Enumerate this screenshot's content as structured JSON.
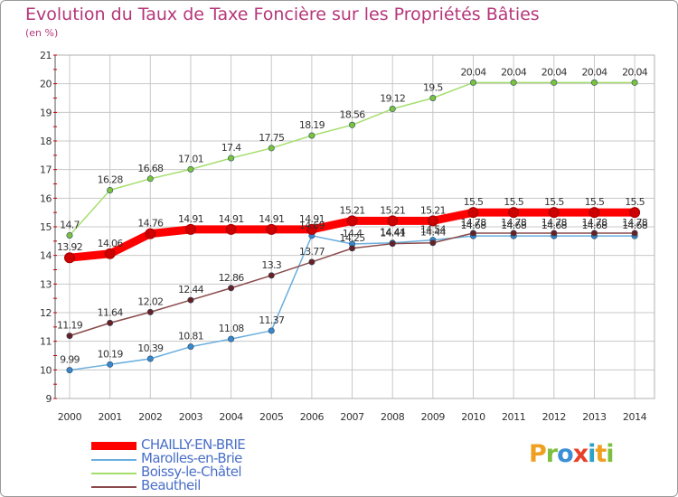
{
  "header": {
    "title": "Evolution du Taux de Taxe Foncière sur les Propriétés Bâties",
    "unit": "(en %)"
  },
  "colors": {
    "accent": "#b5367a",
    "grid": "#c8c8c8",
    "axis_text": "#333333"
  },
  "logo": {
    "letters": [
      {
        "char": "P",
        "color": "#f0a020"
      },
      {
        "char": "r",
        "color": "#7fbf3f"
      },
      {
        "char": "o",
        "color": "#3a8fd6"
      },
      {
        "char": "x",
        "color": "#e8402a"
      },
      {
        "char": "i",
        "color": "#2ba0c8"
      },
      {
        "char": "t",
        "color": "#f0a020"
      },
      {
        "char": "i",
        "color": "#7fbf3f"
      }
    ]
  },
  "chart_data": {
    "type": "line",
    "title": "Evolution du Taux de Taxe Foncière sur les Propriétés Bâties",
    "ylabel": "(en %)",
    "xlabel": "",
    "x": [
      "2000",
      "2001",
      "2002",
      "2003",
      "2004",
      "2005",
      "2006",
      "2007",
      "2008",
      "2009",
      "2010",
      "2011",
      "2012",
      "2013",
      "2014"
    ],
    "ylim": [
      9,
      21
    ],
    "yticks": [
      9,
      10,
      11,
      12,
      13,
      14,
      15,
      16,
      17,
      18,
      19,
      20,
      21
    ],
    "grid": true,
    "legend_position": "bottom-left",
    "series": [
      {
        "name": "CHAILLY-EN-BRIE",
        "color": "#ff0000",
        "marker": "#cc0000",
        "width": "thick",
        "values": [
          13.92,
          14.06,
          14.76,
          14.91,
          14.91,
          14.91,
          14.91,
          15.21,
          15.21,
          15.21,
          15.5,
          15.5,
          15.5,
          15.5,
          15.5
        ],
        "labels": [
          "13.92",
          "14.06",
          "14.76",
          "14.91",
          "14.91",
          "14.91",
          "14.91",
          "15.21",
          "15.21",
          "15.21",
          "15.5",
          "15.5",
          "15.5",
          "15.5",
          "15.5"
        ]
      },
      {
        "name": "Marolles-en-Brie",
        "color": "#6aaede",
        "marker": "#3a86c8",
        "width": "thin",
        "values": [
          9.99,
          10.19,
          10.39,
          10.81,
          11.08,
          11.37,
          14.69,
          14.4,
          14.44,
          14.54,
          14.68,
          14.68,
          14.68,
          14.68,
          14.68
        ],
        "labels": [
          "9.99",
          "10.19",
          "10.39",
          "10.81",
          "11.08",
          "11.37",
          "14.69",
          "14.4",
          "14.44",
          "14.54",
          "14.68",
          "14.68",
          "14.68",
          "14.68",
          "14.68"
        ]
      },
      {
        "name": "Boissy-le-Châtel",
        "color": "#a6de6e",
        "marker": "#7cc23c",
        "width": "thin",
        "values": [
          14.7,
          16.28,
          16.68,
          17.01,
          17.4,
          17.75,
          18.19,
          18.56,
          19.12,
          19.5,
          20.04,
          20.04,
          20.04,
          20.04,
          20.04
        ],
        "labels": [
          "14.7",
          "16.28",
          "16.68",
          "17.01",
          "17.4",
          "17.75",
          "18.19",
          "18.56",
          "19.12",
          "19.5",
          "20.04",
          "20.04",
          "20.04",
          "20.04",
          "20.04"
        ]
      },
      {
        "name": "Beautheil",
        "color": "#8a4a4a",
        "marker": "#6a2020",
        "width": "thin",
        "values": [
          11.19,
          11.64,
          12.02,
          12.44,
          12.86,
          13.3,
          13.77,
          14.25,
          14.41,
          14.44,
          14.78,
          14.78,
          14.78,
          14.78,
          14.78
        ],
        "labels": [
          "11.19",
          "11.64",
          "12.02",
          "12.44",
          "12.86",
          "13.3",
          "13.77",
          "14.25",
          "14.41",
          "14.44",
          "14.78",
          "14.78",
          "14.78",
          "14.78",
          "14.78"
        ]
      }
    ]
  }
}
